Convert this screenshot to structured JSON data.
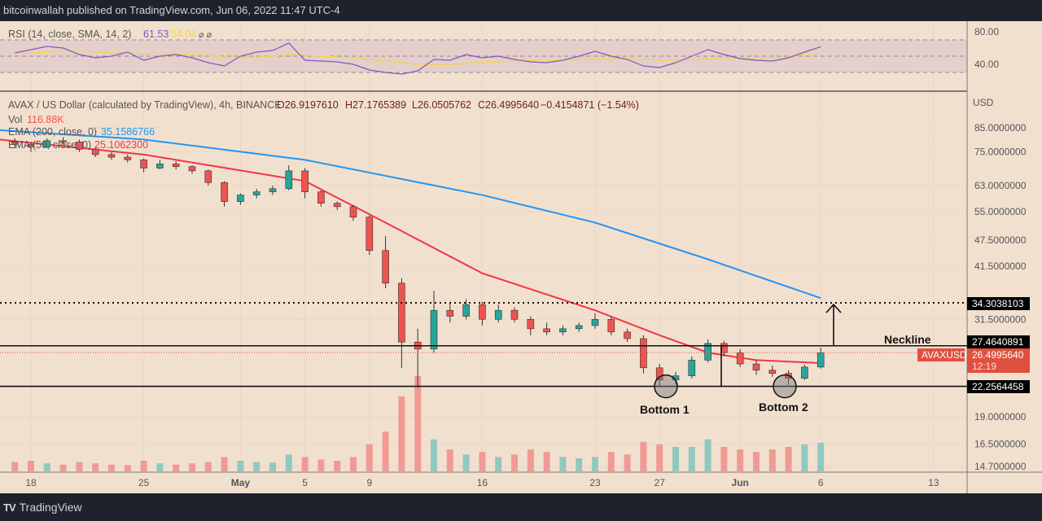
{
  "header": {
    "published": "bitcoinwallah published on TradingView.com, Jun 06, 2022 11:47 UTC-4"
  },
  "footer": {
    "brand": "TradingView",
    "logo_text": "TV"
  },
  "colors": {
    "background": "#f2e0cf",
    "up": "#26a69a",
    "down": "#ef5350",
    "ema200": "#2196f3",
    "ema50": "#f23645",
    "rsi": "#7e57c2",
    "rsi_sma": "#f5d547",
    "label_bg": "#000000",
    "price_label": "#e0503f"
  },
  "rsi_legend": {
    "title": "RSI (14, close, SMA, 14, 2)",
    "rsi_value": "61.53",
    "sma_value": "54.04",
    "extra": "⌀ ⌀"
  },
  "legend": {
    "symbol": "AVAX / US Dollar (calculated by TradingView), 4h, BINANCE",
    "open": "O26.9197610",
    "high": "H27.1765389",
    "low": "L26.0505762",
    "close": "C26.4995640",
    "change": "−0.4154871 (−1.54%)",
    "vol_label": "Vol",
    "vol_value": "116.88K",
    "ema200_label": "EMA (200, close, 0)",
    "ema200_value": "35.1586766",
    "ema50_label": "EMA (50, close, 0)",
    "ema50_value": "25.1062300"
  },
  "annotations": {
    "neckline": "Neckline",
    "bottom1": "Bottom 1",
    "bottom2": "Bottom 2",
    "target_label": "34.3038103",
    "neckline_label": "27.4640891",
    "support_label": "22.2564458",
    "symbol_tag": "AVAXUSD",
    "last_price": "26.4995640",
    "countdown": "12:19"
  },
  "chart_data": {
    "type": "candlestick",
    "price_axis": {
      "unit": "USD",
      "scale": "log",
      "ticks": [
        "85.0000000",
        "75.0000000",
        "63.0000000",
        "55.0000000",
        "47.5000000",
        "41.5000000",
        "31.5000000",
        "19.0000000",
        "16.5000000",
        "14.7000000"
      ],
      "range": [
        14.7,
        85
      ]
    },
    "rsi_axis": {
      "ticks": [
        "80.00",
        "40.00"
      ],
      "levels": [
        70,
        50,
        30
      ]
    },
    "time_axis": {
      "ticks": [
        [
          "18",
          "2022-04-18"
        ],
        [
          "25",
          "2022-04-25"
        ],
        [
          "May",
          "2022-05-01"
        ],
        [
          "5",
          "2022-05-05"
        ],
        [
          "9",
          "2022-05-09"
        ],
        [
          "16",
          "2022-05-16"
        ],
        [
          "23",
          "2022-05-23"
        ],
        [
          "27",
          "2022-05-27"
        ],
        [
          "Jun",
          "2022-06-01"
        ],
        [
          "6",
          "2022-06-06"
        ],
        [
          "13",
          "2022-06-13"
        ]
      ]
    },
    "levels": {
      "target": 34.3038103,
      "neckline": 27.4640891,
      "support": 22.2564458,
      "last": 26.499564
    },
    "candles_ohlc": [
      [
        "2022-04-17",
        79,
        80.5,
        76.5,
        78
      ],
      [
        "2022-04-18",
        78,
        79,
        75,
        77
      ],
      [
        "2022-04-19",
        77,
        80.5,
        76.5,
        79.5
      ],
      [
        "2022-04-20",
        79.5,
        81,
        77.5,
        79
      ],
      [
        "2022-04-21",
        79,
        80,
        75,
        76
      ],
      [
        "2022-04-22",
        76,
        77,
        73,
        74
      ],
      [
        "2022-04-23",
        74,
        75,
        72,
        73
      ],
      [
        "2022-04-24",
        73,
        74,
        71,
        72
      ],
      [
        "2022-04-25",
        72,
        72.5,
        67.5,
        69
      ],
      [
        "2022-04-26",
        69,
        72,
        68.5,
        70.5
      ],
      [
        "2022-04-27",
        70.5,
        71.5,
        68.5,
        69.5
      ],
      [
        "2022-04-28",
        69.5,
        70,
        67,
        68
      ],
      [
        "2022-04-29",
        68,
        68.5,
        63,
        64
      ],
      [
        "2022-04-30",
        64,
        64.5,
        56.5,
        58
      ],
      [
        "2022-05-01",
        58,
        60.5,
        57,
        60
      ],
      [
        "2022-05-02",
        60,
        62,
        59,
        61
      ],
      [
        "2022-05-03",
        61,
        63,
        60,
        62
      ],
      [
        "2022-05-04",
        62,
        70,
        61.5,
        68
      ],
      [
        "2022-05-05",
        68,
        69,
        59,
        61
      ],
      [
        "2022-05-06",
        61,
        61.5,
        56.5,
        57.5
      ],
      [
        "2022-05-07",
        57.5,
        58,
        55.5,
        56.5
      ],
      [
        "2022-05-08",
        56.5,
        57,
        52.5,
        53.5
      ],
      [
        "2022-05-09",
        53.5,
        54,
        44,
        45
      ],
      [
        "2022-05-10",
        45,
        48.5,
        37,
        38
      ],
      [
        "2022-05-11",
        38,
        39,
        24.5,
        28
      ],
      [
        "2022-05-12",
        28,
        30,
        22.2,
        27
      ],
      [
        "2022-05-13",
        27,
        36.5,
        26.5,
        33
      ],
      [
        "2022-05-14",
        33,
        34.5,
        31,
        32
      ],
      [
        "2022-05-15",
        32,
        35,
        31.5,
        34
      ],
      [
        "2022-05-16",
        34,
        34.5,
        30.5,
        31.5
      ],
      [
        "2022-05-17",
        31.5,
        34,
        31,
        33
      ],
      [
        "2022-05-18",
        33,
        33.5,
        31,
        31.5
      ],
      [
        "2022-05-19",
        31.5,
        32,
        29,
        30
      ],
      [
        "2022-05-20",
        30,
        31,
        29,
        29.5
      ],
      [
        "2022-05-21",
        29.5,
        30.5,
        29,
        30
      ],
      [
        "2022-05-22",
        30,
        31,
        29.5,
        30.5
      ],
      [
        "2022-05-23",
        30.5,
        32.5,
        30,
        31.5
      ],
      [
        "2022-05-24",
        31.5,
        32,
        29,
        29.5
      ],
      [
        "2022-05-25",
        29.5,
        30,
        28,
        28.5
      ],
      [
        "2022-05-26",
        28.5,
        29,
        23.8,
        24.5
      ],
      [
        "2022-05-27",
        24.5,
        25,
        22.3,
        23
      ],
      [
        "2022-05-28",
        23,
        24,
        22.5,
        23.5
      ],
      [
        "2022-05-29",
        23.5,
        26,
        23.2,
        25.5
      ],
      [
        "2022-05-30",
        25.5,
        28.4,
        25.2,
        27.8
      ],
      [
        "2022-05-31",
        27.8,
        28.2,
        26,
        26.5
      ],
      [
        "2022-06-01",
        26.5,
        27,
        24.6,
        25
      ],
      [
        "2022-06-02",
        25,
        25.5,
        23.6,
        24.2
      ],
      [
        "2022-06-03",
        24.2,
        24.8,
        23.4,
        23.8
      ],
      [
        "2022-06-04",
        23.8,
        24.2,
        22.4,
        23.2
      ],
      [
        "2022-06-05",
        23.2,
        24.9,
        23,
        24.6
      ],
      [
        "2022-06-06",
        24.6,
        27.2,
        24.4,
        26.5
      ]
    ],
    "volume_k": [
      40,
      45,
      35,
      30,
      40,
      35,
      30,
      28,
      45,
      35,
      30,
      35,
      40,
      60,
      45,
      40,
      38,
      70,
      60,
      50,
      45,
      60,
      110,
      160,
      300,
      380,
      130,
      90,
      70,
      80,
      60,
      70,
      90,
      80,
      60,
      55,
      60,
      80,
      70,
      120,
      110,
      100,
      100,
      130,
      100,
      90,
      80,
      90,
      100,
      110,
      116.88
    ],
    "rsi": [
      54,
      58,
      62,
      60,
      52,
      48,
      50,
      55,
      45,
      50,
      52,
      48,
      42,
      38,
      50,
      55,
      57,
      66,
      45,
      44,
      43,
      40,
      33,
      30,
      28,
      32,
      46,
      45,
      52,
      48,
      50,
      46,
      43,
      42,
      45,
      50,
      56,
      50,
      46,
      38,
      36,
      42,
      50,
      58,
      52,
      47,
      45,
      44,
      48,
      55,
      61.53
    ],
    "rsi_sma": [
      53,
      54,
      55,
      56,
      56,
      55,
      54,
      54,
      53,
      53,
      52,
      52,
      51,
      49,
      49,
      49,
      50,
      52,
      51,
      50,
      49,
      48,
      46,
      44,
      42,
      40,
      40,
      40,
      41,
      42,
      43,
      44,
      45,
      45,
      45,
      46,
      47,
      47,
      47,
      46,
      45,
      45,
      46,
      47,
      48,
      48,
      48,
      48,
      49,
      52,
      54.04
    ],
    "ema200": [
      [
        "2022-04-16",
        84
      ],
      [
        "2022-04-25",
        80
      ],
      [
        "2022-05-05",
        72
      ],
      [
        "2022-05-16",
        60
      ],
      [
        "2022-05-23",
        52
      ],
      [
        "2022-05-30",
        43
      ],
      [
        "2022-06-06",
        35.16
      ]
    ],
    "ema50": [
      [
        "2022-04-16",
        80
      ],
      [
        "2022-04-25",
        74
      ],
      [
        "2022-05-05",
        64.5
      ],
      [
        "2022-05-10",
        52
      ],
      [
        "2022-05-16",
        40
      ],
      [
        "2022-05-23",
        33
      ],
      [
        "2022-05-27",
        29
      ],
      [
        "2022-05-30",
        26.5
      ],
      [
        "2022-06-02",
        25.5
      ],
      [
        "2022-06-06",
        25.11
      ]
    ]
  }
}
